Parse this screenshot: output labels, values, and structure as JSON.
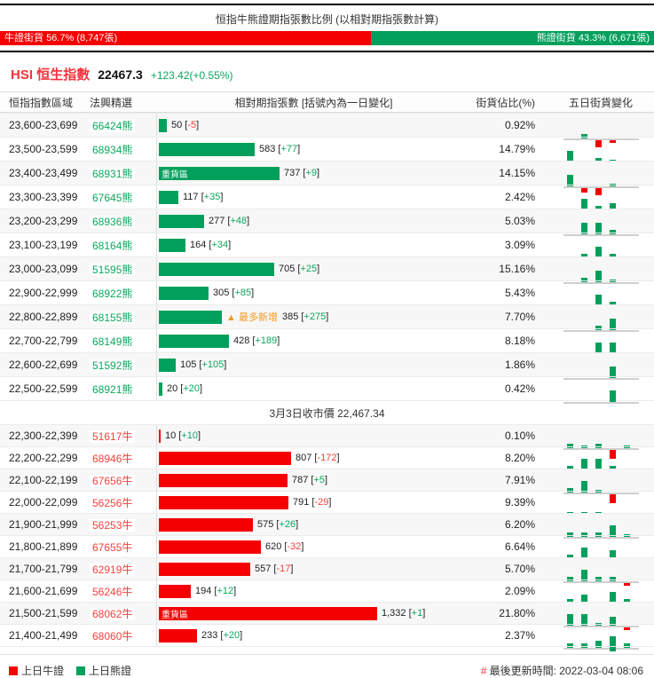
{
  "app": {
    "title": "恒指牛熊證期指張數比例 (以相對期指張數計算)"
  },
  "ratio_bar": {
    "bull_label": "牛證街貨",
    "bull_pct": "56.7%",
    "bull_qty": "(8,747張)",
    "bull_pct_value": 56.7,
    "bear_label": "熊證街貨",
    "bear_pct": "43.3%",
    "bear_qty": "(6,671張)",
    "bear_pct_value": 43.3
  },
  "index": {
    "code": "HSI",
    "name": "恒生指數",
    "value": "22467.3",
    "change": "+123.42(+0.55%)"
  },
  "table": {
    "columns": [
      "恒指指數區域",
      "法興精選",
      "相對期指張數 [括號內為一日變化]",
      "街貨佔比(%)",
      "五日街貨變化"
    ]
  },
  "chart_data": {
    "type": "bar",
    "orientation": "horizontal",
    "title": "恒指牛熊證期指張數比例 (以相對期指張數計算)",
    "value_label": "相對期指張數 (張)",
    "max_value": 1332,
    "close_divider": "3月3日收市價 22,467.34",
    "bear_section": {
      "side": "bear",
      "rows": [
        {
          "range": "23,600-23,699",
          "code": "66424熊",
          "oi": 50,
          "oi_display": "50",
          "change": "-5",
          "share_pct": "0.92%",
          "spark": [
            0,
            2,
            -3,
            -1,
            0
          ]
        },
        {
          "range": "23,500-23,599",
          "code": "68934熊",
          "oi": 583,
          "oi_display": "583",
          "change": "+77",
          "share_pct": "14.79%",
          "spark": [
            5,
            -2,
            2,
            1,
            0
          ]
        },
        {
          "range": "23,400-23,499",
          "code": "68931熊",
          "oi": 737,
          "oi_display": "737",
          "change": "+9",
          "share_pct": "14.15%",
          "spark": [
            5,
            -2,
            -3,
            1,
            0
          ],
          "heavy_label": "重貨區"
        },
        {
          "range": "23,300-23,399",
          "code": "67645熊",
          "oi": 117,
          "oi_display": "117",
          "change": "+35",
          "share_pct": "2.42%",
          "spark": [
            0,
            5,
            2,
            3,
            0
          ]
        },
        {
          "range": "23,200-23,299",
          "code": "68936熊",
          "oi": 277,
          "oi_display": "277",
          "change": "+48",
          "share_pct": "5.03%",
          "spark": [
            0,
            5,
            5,
            2,
            0
          ]
        },
        {
          "range": "23,100-23,199",
          "code": "68164熊",
          "oi": 164,
          "oi_display": "164",
          "change": "+34",
          "share_pct": "3.09%",
          "spark": [
            0,
            2,
            5,
            2,
            0
          ]
        },
        {
          "range": "23,000-23,099",
          "code": "51595熊",
          "oi": 705,
          "oi_display": "705",
          "change": "+25",
          "share_pct": "15.16%",
          "spark": [
            0,
            2,
            5,
            1,
            0
          ]
        },
        {
          "range": "22,900-22,999",
          "code": "68922熊",
          "oi": 305,
          "oi_display": "305",
          "change": "+85",
          "share_pct": "5.43%",
          "spark": [
            0,
            0,
            5,
            2,
            0
          ]
        },
        {
          "range": "22,800-22,899",
          "code": "68155熊",
          "oi": 385,
          "oi_display": "385",
          "change": "+275",
          "share_pct": "7.70%",
          "spark": [
            0,
            0,
            2,
            5,
            0
          ],
          "tag": "▲ 最多新增"
        },
        {
          "range": "22,700-22,799",
          "code": "68149熊",
          "oi": 428,
          "oi_display": "428",
          "change": "+189",
          "share_pct": "8.18%",
          "spark": [
            0,
            0,
            5,
            5,
            0
          ]
        },
        {
          "range": "22,600-22,699",
          "code": "51592熊",
          "oi": 105,
          "oi_display": "105",
          "change": "+105",
          "share_pct": "1.86%",
          "spark": [
            0,
            0,
            0,
            5,
            0
          ]
        },
        {
          "range": "22,500-22,599",
          "code": "68921熊",
          "oi": 20,
          "oi_display": "20",
          "change": "+20",
          "share_pct": "0.42%",
          "spark": [
            0,
            0,
            0,
            5,
            0
          ]
        }
      ]
    },
    "bull_section": {
      "side": "bull",
      "rows": [
        {
          "range": "22,300-22,399",
          "code": "51617牛",
          "oi": 10,
          "oi_display": "10",
          "change": "+10",
          "share_pct": "0.10%",
          "spark": [
            2,
            1,
            2,
            -4,
            1
          ]
        },
        {
          "range": "22,200-22,299",
          "code": "68946牛",
          "oi": 807,
          "oi_display": "807",
          "change": "-172",
          "share_pct": "8.20%",
          "spark": [
            2,
            5,
            5,
            2,
            -4
          ]
        },
        {
          "range": "22,100-22,199",
          "code": "67656牛",
          "oi": 787,
          "oi_display": "787",
          "change": "+5",
          "share_pct": "7.91%",
          "spark": [
            2,
            5,
            1,
            -4,
            0
          ]
        },
        {
          "range": "22,000-22,099",
          "code": "56256牛",
          "oi": 791,
          "oi_display": "791",
          "change": "-29",
          "share_pct": "9.39%",
          "spark": [
            1,
            1,
            1,
            -5,
            -1
          ]
        },
        {
          "range": "21,900-21,999",
          "code": "56253牛",
          "oi": 575,
          "oi_display": "575",
          "change": "+26",
          "share_pct": "6.20%",
          "spark": [
            2,
            2,
            2,
            5,
            1
          ]
        },
        {
          "range": "21,800-21,899",
          "code": "67655牛",
          "oi": 620,
          "oi_display": "620",
          "change": "-32",
          "share_pct": "6.64%",
          "spark": [
            2,
            5,
            -1,
            4,
            -1
          ]
        },
        {
          "range": "21,700-21,799",
          "code": "62919牛",
          "oi": 557,
          "oi_display": "557",
          "change": "-17",
          "share_pct": "5.70%",
          "spark": [
            2,
            5,
            2,
            2,
            -1
          ]
        },
        {
          "range": "21,600-21,699",
          "code": "56246牛",
          "oi": 194,
          "oi_display": "194",
          "change": "+12",
          "share_pct": "2.09%",
          "spark": [
            2,
            4,
            -1,
            5,
            2
          ]
        },
        {
          "range": "21,500-21,599",
          "code": "68062牛",
          "oi": 1332,
          "oi_display": "1,332",
          "change": "+1",
          "share_pct": "21.80%",
          "spark": [
            5,
            5,
            1,
            4,
            -1
          ],
          "heavy_label": "重貨區"
        },
        {
          "range": "21,400-21,499",
          "code": "68060牛",
          "oi": 233,
          "oi_display": "233",
          "change": "+20",
          "share_pct": "2.37%",
          "spark": [
            2,
            2,
            3,
            5,
            2
          ]
        }
      ]
    },
    "bottom_partial_spark": [
      0,
      0,
      0,
      2,
      0
    ]
  },
  "footer": {
    "legend": [
      {
        "label": "上日牛證",
        "color": "#f40000"
      },
      {
        "label": "上日熊證",
        "color": "#00a05c"
      }
    ],
    "update_prefix": "#",
    "update_text": "最後更新時間: 2022-03-04 08:06"
  },
  "colors": {
    "bar_red": "#f40000",
    "bar_green": "#00a05c",
    "positive_green": "#0da65d",
    "negative_red": "#f5413d",
    "orange": "#f59a23"
  }
}
